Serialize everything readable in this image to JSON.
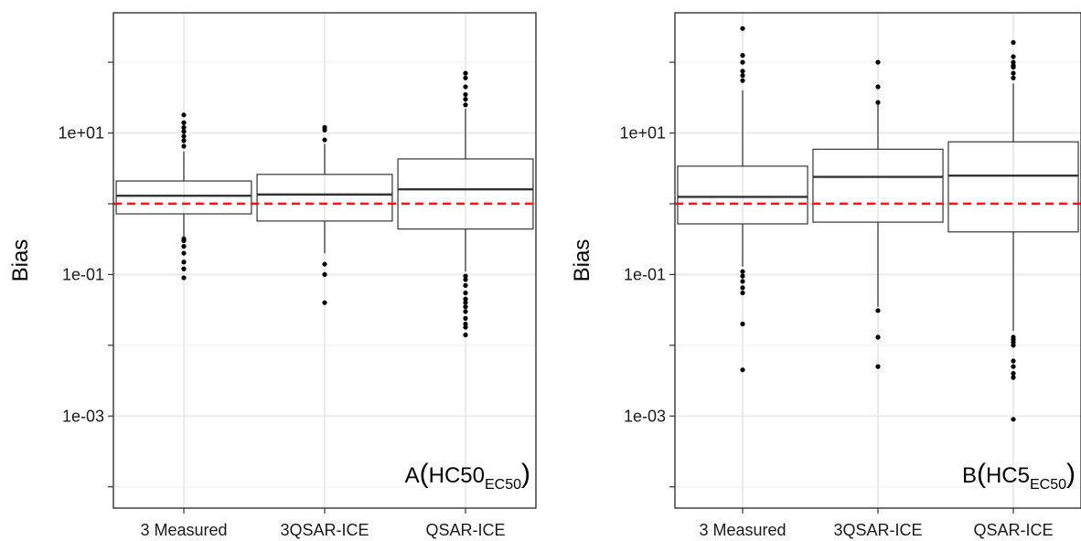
{
  "chart_data": [
    {
      "type": "boxplot",
      "panel_label": "A",
      "panel_label_main": "HC50",
      "panel_label_sub": "EC50",
      "ylabel": "Bias",
      "xlabel": "",
      "y_scale": "log10",
      "ylim": [
        5e-05,
        500
      ],
      "y_ticks": [
        {
          "value": 0.001,
          "label": "1e-03"
        },
        {
          "value": 0.1,
          "label": "1e-01"
        },
        {
          "value": 10,
          "label": "1e+01"
        }
      ],
      "reference_line": {
        "value": 1,
        "color": "#e41a1c",
        "style": "dashed"
      },
      "grid": true,
      "categories": [
        "3 Measured",
        "3QSAR-ICE",
        "QSAR-ICE"
      ],
      "boxes": [
        {
          "category": "3 Measured",
          "q1": 0.72,
          "median": 1.3,
          "q3": 2.1,
          "whisker_low": 0.33,
          "whisker_high": 5.5,
          "outliers": [
            0.09,
            0.12,
            0.15,
            0.2,
            0.25,
            0.3,
            0.32,
            6.5,
            7.8,
            9.0,
            10.5,
            12.0,
            14.0,
            18.0
          ]
        },
        {
          "category": "3QSAR-ICE",
          "q1": 0.57,
          "median": 1.35,
          "q3": 2.6,
          "whisker_low": 0.2,
          "whisker_high": 7.0,
          "outliers": [
            0.04,
            0.1,
            0.14,
            8.0,
            11.0,
            12.0
          ]
        },
        {
          "category": "QSAR-ICE",
          "q1": 0.44,
          "median": 1.6,
          "q3": 4.3,
          "whisker_low": 0.11,
          "whisker_high": 22.0,
          "outliers": [
            0.014,
            0.018,
            0.02,
            0.024,
            0.03,
            0.035,
            0.04,
            0.045,
            0.055,
            0.07,
            0.085,
            0.095,
            25.0,
            30.0,
            35.0,
            45.0,
            60.0,
            70.0
          ]
        }
      ]
    },
    {
      "type": "boxplot",
      "panel_label": "B",
      "panel_label_main": "HC5",
      "panel_label_sub": "EC50",
      "ylabel": "Bias",
      "xlabel": "",
      "y_scale": "log10",
      "ylim": [
        5e-05,
        500
      ],
      "y_ticks": [
        {
          "value": 0.001,
          "label": "1e-03"
        },
        {
          "value": 0.1,
          "label": "1e-01"
        },
        {
          "value": 10,
          "label": "1e+01"
        }
      ],
      "reference_line": {
        "value": 1,
        "color": "#e41a1c",
        "style": "dashed"
      },
      "grid": true,
      "categories": [
        "3 Measured",
        "3QSAR-ICE",
        "QSAR-ICE"
      ],
      "boxes": [
        {
          "category": "3 Measured",
          "q1": 0.52,
          "median": 1.25,
          "q3": 3.4,
          "whisker_low": 0.13,
          "whisker_high": 40.0,
          "outliers": [
            0.0045,
            0.02,
            0.055,
            0.065,
            0.08,
            0.095,
            0.11,
            55.0,
            65.0,
            75.0,
            100.0,
            125.0,
            300.0
          ]
        },
        {
          "category": "3QSAR-ICE",
          "q1": 0.55,
          "median": 2.4,
          "q3": 5.9,
          "whisker_low": 0.035,
          "whisker_high": 25.0,
          "outliers": [
            0.005,
            0.013,
            0.031,
            27.0,
            45.0,
            100.0
          ]
        },
        {
          "category": "QSAR-ICE",
          "q1": 0.4,
          "median": 2.5,
          "q3": 7.5,
          "whisker_low": 0.016,
          "whisker_high": 50.0,
          "outliers": [
            0.0009,
            0.0035,
            0.004,
            0.005,
            0.006,
            0.01,
            0.011,
            0.012,
            0.013,
            60.0,
            70.0,
            85.0,
            90.0,
            100.0,
            120.0,
            190.0
          ]
        }
      ]
    }
  ]
}
